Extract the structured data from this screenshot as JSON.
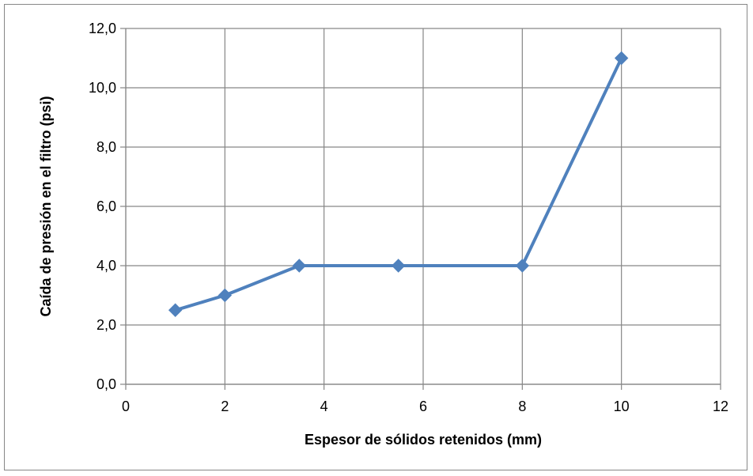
{
  "chart_data": {
    "type": "line",
    "title": "",
    "xlabel": "Espesor de sólidos retenidos (mm)",
    "ylabel": "Caída de presión en el filtro (psi)",
    "xlim": [
      0,
      12
    ],
    "ylim": [
      0,
      12
    ],
    "x_ticks": [
      0,
      2,
      4,
      6,
      8,
      10,
      12
    ],
    "y_ticks": [
      0,
      2,
      4,
      6,
      8,
      10,
      12
    ],
    "x_tick_labels": [
      "0",
      "2",
      "4",
      "6",
      "8",
      "10",
      "12"
    ],
    "y_tick_labels": [
      "0,0",
      "2,0",
      "4,0",
      "6,0",
      "8,0",
      "10,0",
      "12,0"
    ],
    "grid": true,
    "legend": "none",
    "series": [
      {
        "color": "#4F81BD",
        "marker": "diamond",
        "x": [
          1,
          2,
          3.5,
          5.5,
          8,
          10
        ],
        "y": [
          2.5,
          3.0,
          4.0,
          4.0,
          4.0,
          11.0
        ]
      }
    ],
    "colors": {
      "grid": "#868686",
      "axis": "#868686",
      "frame": "#878787"
    }
  }
}
